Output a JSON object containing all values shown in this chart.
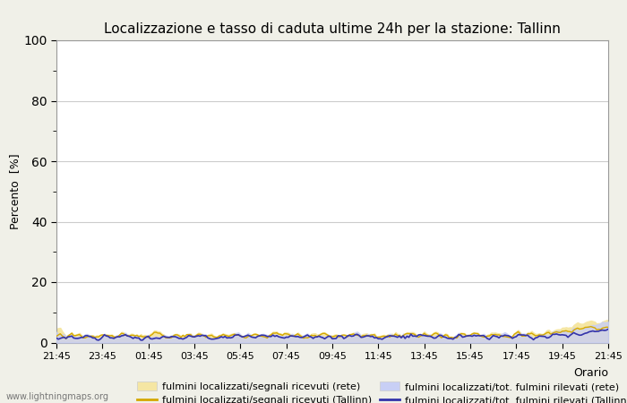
{
  "title": "Localizzazione e tasso di caduta ultime 24h per la stazione: Tallinn",
  "ylabel": "Percento  [%]",
  "xlabel": "Orario",
  "ylim": [
    0,
    100
  ],
  "yticks": [
    0,
    20,
    40,
    60,
    80,
    100
  ],
  "xtick_labels": [
    "21:45",
    "23:45",
    "01:45",
    "03:45",
    "05:45",
    "07:45",
    "09:45",
    "11:45",
    "13:45",
    "15:45",
    "17:45",
    "19:45",
    "21:45"
  ],
  "color_fill1": "#f5e6a3",
  "color_fill2": "#c8cff5",
  "color_line1": "#d4a800",
  "color_line2": "#3333aa",
  "legend_labels": [
    "fulmini localizzati/segnali ricevuti (rete)",
    "fulmini localizzati/segnali ricevuti (Tallinn)",
    "fulmini localizzati/tot. fulmini rilevati (rete)",
    "fulmini localizzati/tot. fulmini rilevati (Tallinn)"
  ],
  "watermark": "www.lightningmaps.org",
  "background_color": "#f0f0e8",
  "plot_background": "#ffffff",
  "grid_color": "#cccccc",
  "n_points": 289
}
